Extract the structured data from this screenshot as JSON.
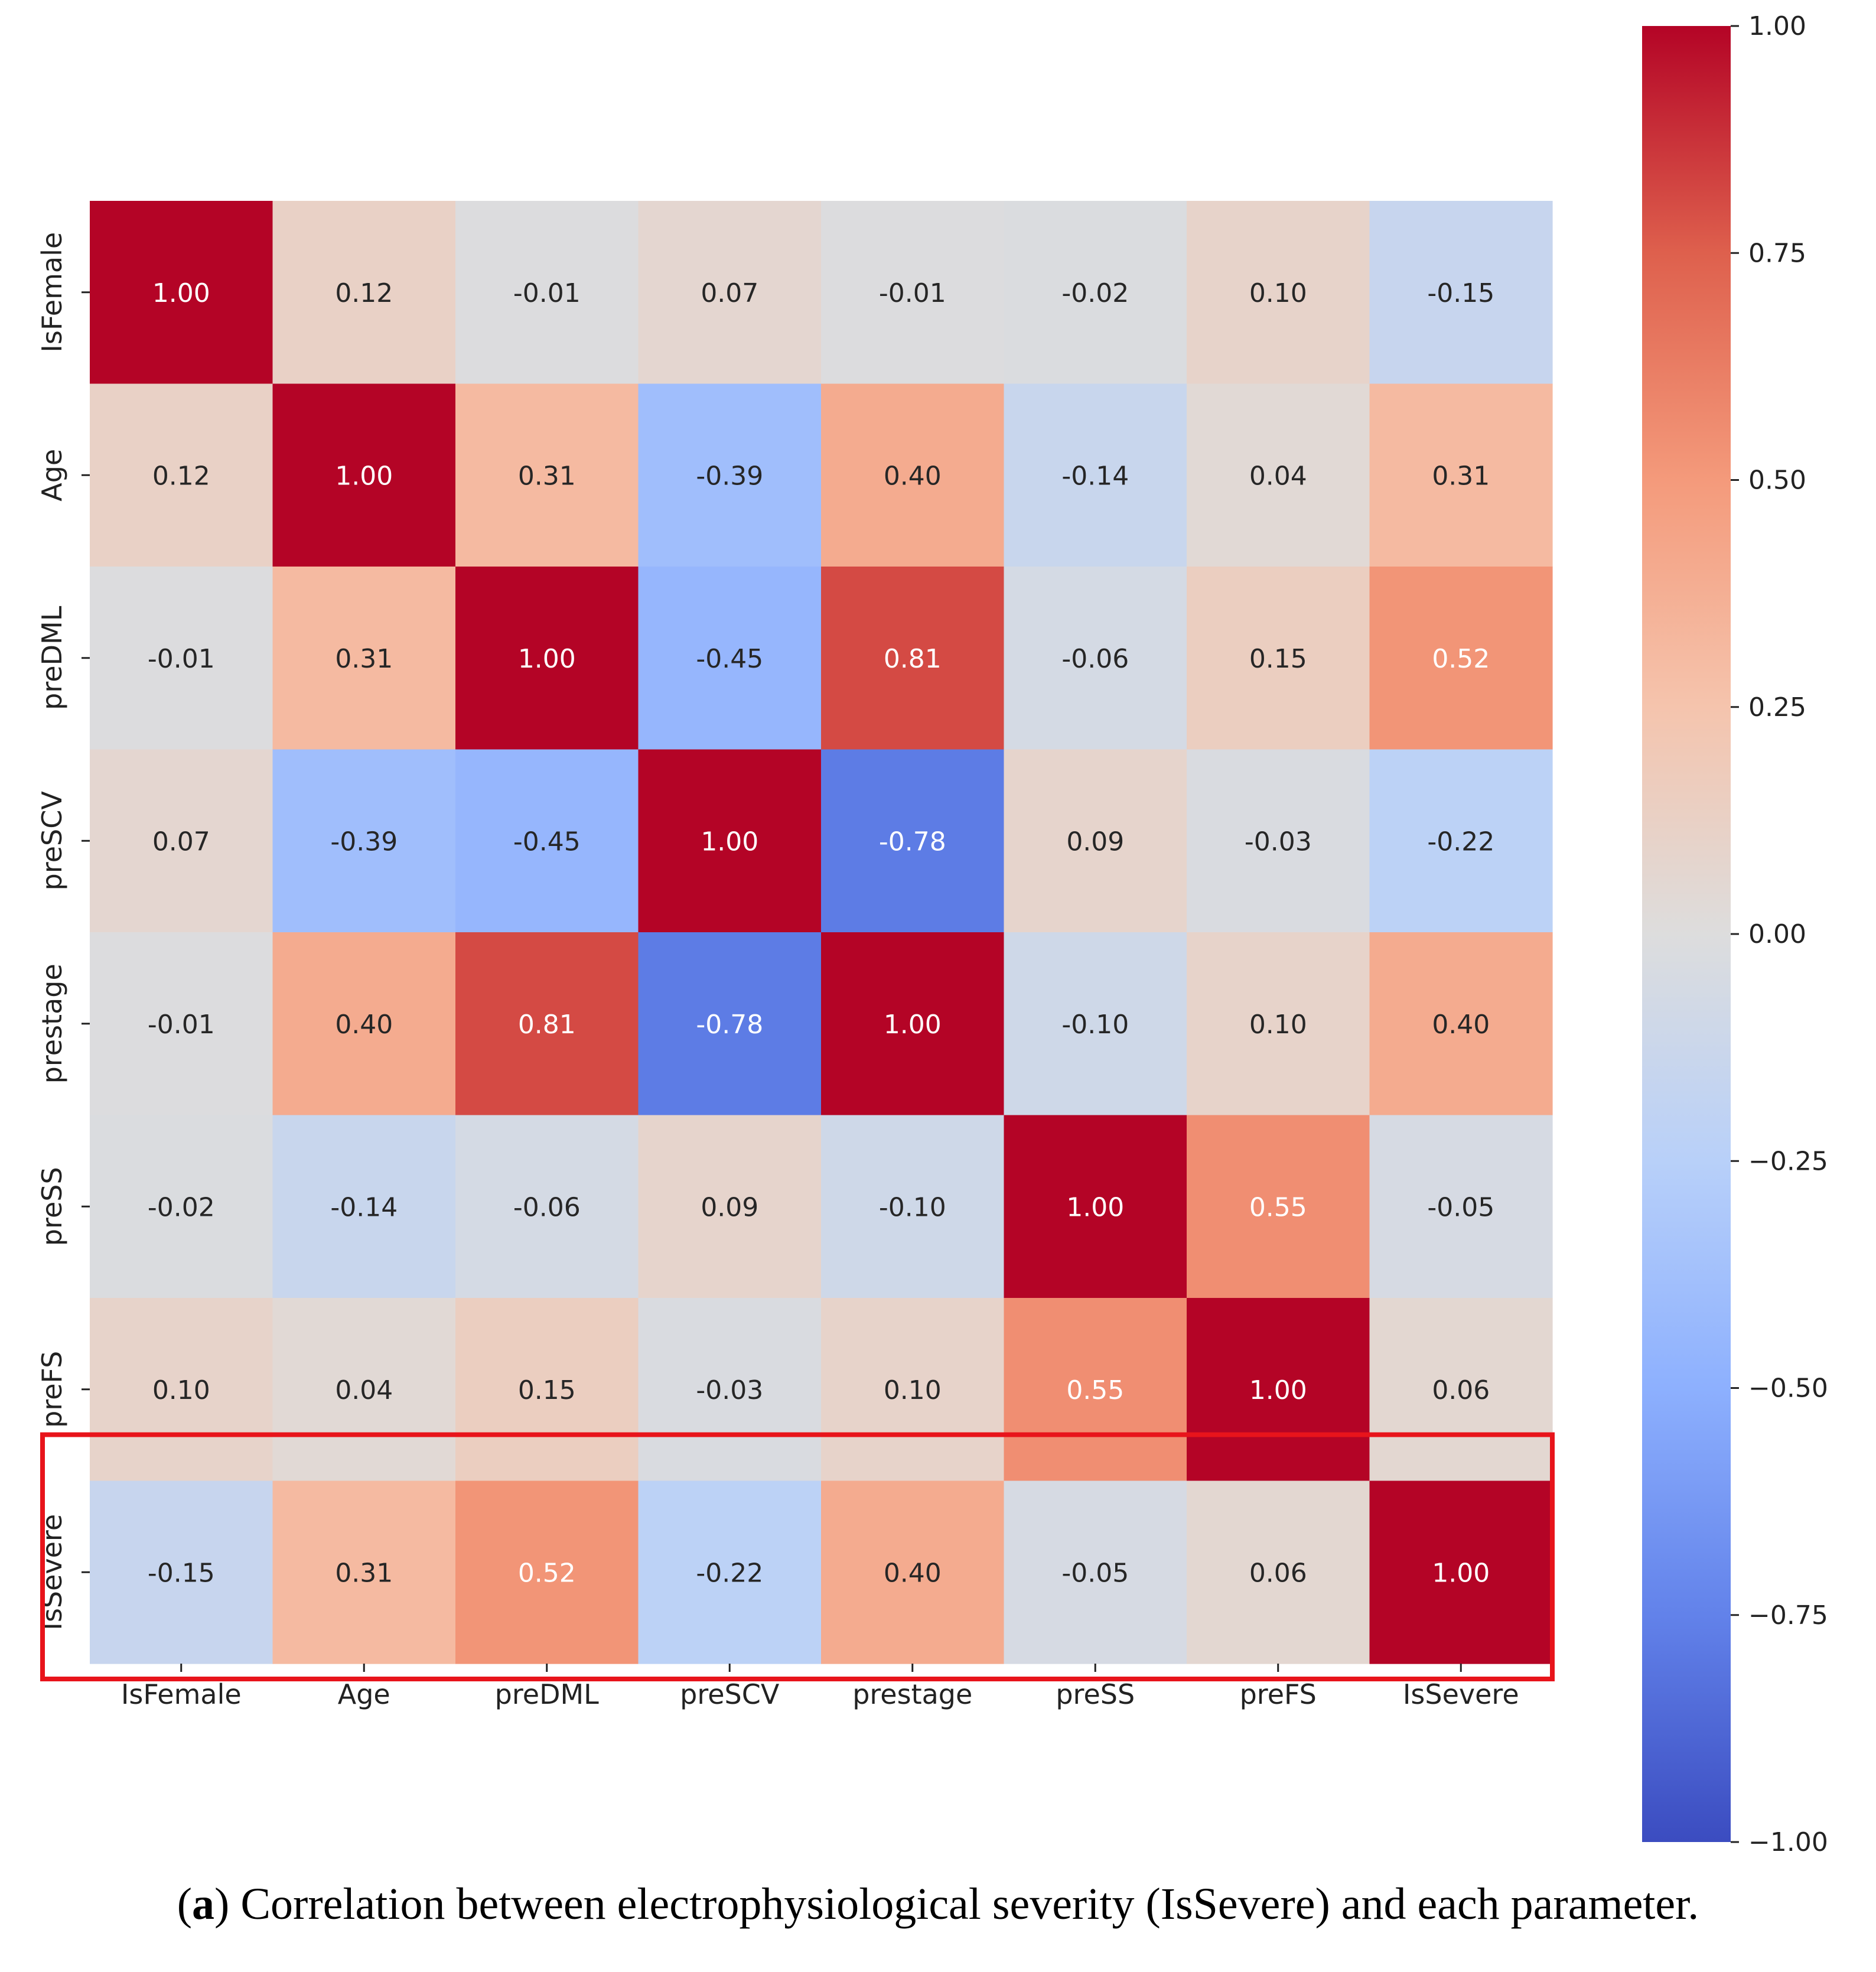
{
  "chart_data": {
    "type": "heatmap",
    "title": "",
    "variables": [
      "IsFemale",
      "Age",
      "preDML",
      "preSCV",
      "prestage",
      "preSS",
      "preFS",
      "IsSevere"
    ],
    "matrix": [
      [
        1.0,
        0.12,
        -0.01,
        0.07,
        -0.01,
        -0.02,
        0.1,
        -0.15
      ],
      [
        0.12,
        1.0,
        0.31,
        -0.39,
        0.4,
        -0.14,
        0.04,
        0.31
      ],
      [
        -0.01,
        0.31,
        1.0,
        -0.45,
        0.81,
        -0.06,
        0.15,
        0.52
      ],
      [
        0.07,
        -0.39,
        -0.45,
        1.0,
        -0.78,
        0.09,
        -0.03,
        -0.22
      ],
      [
        -0.01,
        0.4,
        0.81,
        -0.78,
        1.0,
        -0.1,
        0.1,
        0.4
      ],
      [
        -0.02,
        -0.14,
        -0.06,
        0.09,
        -0.1,
        1.0,
        0.55,
        -0.05
      ],
      [
        0.1,
        0.04,
        0.15,
        -0.03,
        0.1,
        0.55,
        1.0,
        0.06
      ],
      [
        -0.15,
        0.31,
        0.52,
        -0.22,
        0.4,
        -0.05,
        0.06,
        1.0
      ]
    ],
    "value_format": "2 decimals",
    "colormap": "coolwarm",
    "vmin": -1.0,
    "vmax": 1.0,
    "colorbar_ticks": [
      "1.00",
      "0.75",
      "0.50",
      "0.25",
      "0.00",
      "−0.25",
      "−0.50",
      "−0.75",
      "−1.00"
    ],
    "colorbar_tick_values": [
      1.0,
      0.75,
      0.5,
      0.25,
      0.0,
      -0.25,
      -0.5,
      -0.75,
      -1.0
    ],
    "highlighted_row": "IsSevere",
    "highlight_color": "#e8141b"
  },
  "caption": {
    "label": "a",
    "text": ") Correlation between electrophysiological severity (IsSevere) and each parameter."
  }
}
